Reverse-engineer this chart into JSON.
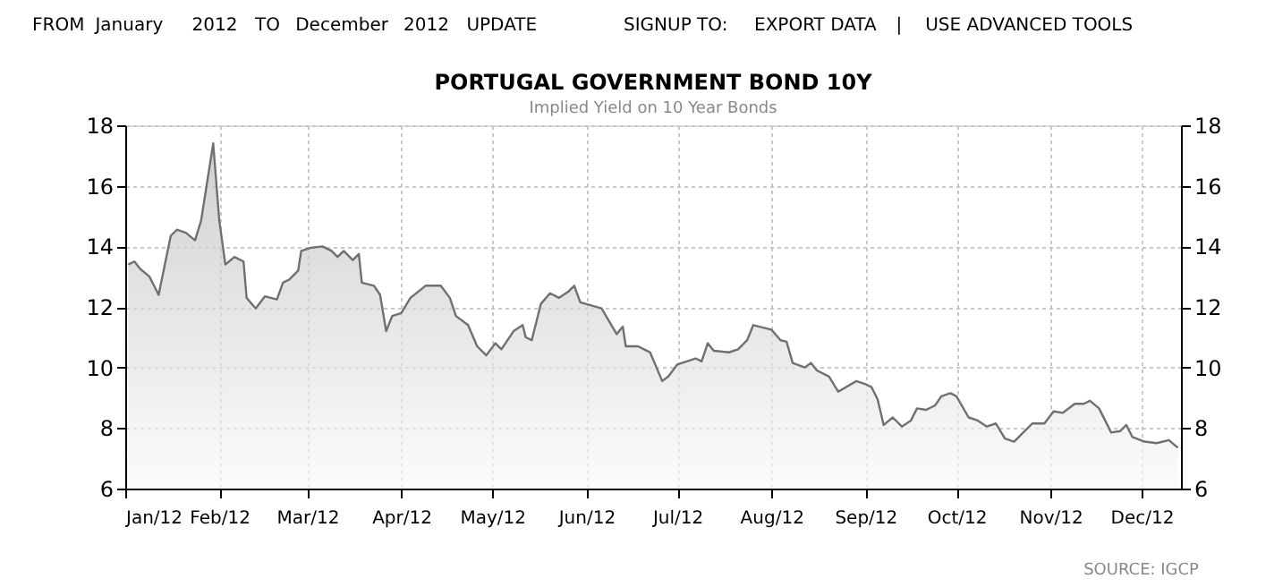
{
  "chart_data": {
    "type": "area",
    "title": "PORTUGAL GOVERNMENT BOND 10Y",
    "subtitle": "Implied Yield on 10 Year Bonds",
    "annotations": [
      "FROM",
      "January",
      "2012",
      "TO",
      "December",
      "2012",
      "UPDATE",
      "SIGNUP TO:",
      "EXPORT DATA",
      "|",
      "USE ADVANCED TOOLS",
      "SOURCE: IGCP"
    ],
    "series": [
      {
        "color": "#707070",
        "x": [
          "2012-01-02",
          "2012-01-04",
          "2012-01-06",
          "2012-01-09",
          "2012-01-12",
          "2012-01-16",
          "2012-01-18",
          "2012-01-21",
          "2012-01-24",
          "2012-01-26",
          "2012-01-30",
          "2012-02-01",
          "2012-02-03",
          "2012-02-06",
          "2012-02-09",
          "2012-02-10",
          "2012-02-13",
          "2012-02-16",
          "2012-02-20",
          "2012-02-22",
          "2012-02-24",
          "2012-02-27",
          "2012-02-28",
          "2012-03-02",
          "2012-03-06",
          "2012-03-09",
          "2012-03-11",
          "2012-03-13",
          "2012-03-16",
          "2012-03-18",
          "2012-03-19",
          "2012-03-23",
          "2012-03-25",
          "2012-03-27",
          "2012-03-29",
          "2012-04-01",
          "2012-04-04",
          "2012-04-09",
          "2012-04-14",
          "2012-04-17",
          "2012-04-19",
          "2012-04-23",
          "2012-04-26",
          "2012-04-29",
          "2012-05-02",
          "2012-05-04",
          "2012-05-08",
          "2012-05-11",
          "2012-05-12",
          "2012-05-14",
          "2012-05-17",
          "2012-05-20",
          "2012-05-23",
          "2012-05-26",
          "2012-05-28",
          "2012-05-30",
          "2012-06-06",
          "2012-06-11",
          "2012-06-13",
          "2012-06-14",
          "2012-06-18",
          "2012-06-20",
          "2012-06-22",
          "2012-06-26",
          "2012-06-28",
          "2012-07-01",
          "2012-07-07",
          "2012-07-09",
          "2012-07-11",
          "2012-07-13",
          "2012-07-18",
          "2012-07-21",
          "2012-07-24",
          "2012-07-26",
          "2012-08-01",
          "2012-08-04",
          "2012-08-06",
          "2012-08-08",
          "2012-08-12",
          "2012-08-14",
          "2012-08-16",
          "2012-08-20",
          "2012-08-23",
          "2012-08-29",
          "2012-09-01",
          "2012-09-03",
          "2012-09-05",
          "2012-09-07",
          "2012-09-10",
          "2012-09-13",
          "2012-09-16",
          "2012-09-18",
          "2012-09-21",
          "2012-09-24",
          "2012-09-26",
          "2012-09-29",
          "2012-10-01",
          "2012-10-05",
          "2012-10-08",
          "2012-10-11",
          "2012-10-14",
          "2012-10-17",
          "2012-10-20",
          "2012-10-23",
          "2012-10-26",
          "2012-10-30",
          "2012-11-02",
          "2012-11-05",
          "2012-11-09",
          "2012-11-12",
          "2012-11-14",
          "2012-11-17",
          "2012-11-21",
          "2012-11-24",
          "2012-11-26",
          "2012-11-28",
          "2012-12-02",
          "2012-12-06",
          "2012-12-10",
          "2012-12-13"
        ],
        "values": [
          13.4,
          13.5,
          13.25,
          13.0,
          12.4,
          14.35,
          14.55,
          14.45,
          14.2,
          14.85,
          17.4,
          14.85,
          13.4,
          13.65,
          13.5,
          12.3,
          11.95,
          12.35,
          12.25,
          12.8,
          12.9,
          13.2,
          13.85,
          13.95,
          14.0,
          13.85,
          13.65,
          13.85,
          13.55,
          13.75,
          12.8,
          12.7,
          12.4,
          11.2,
          11.7,
          11.8,
          12.3,
          12.7,
          12.7,
          12.3,
          11.7,
          11.4,
          10.7,
          10.4,
          10.8,
          10.6,
          11.2,
          11.4,
          11.0,
          10.9,
          12.1,
          12.45,
          12.3,
          12.5,
          12.7,
          12.15,
          11.95,
          11.1,
          11.35,
          10.7,
          10.7,
          10.6,
          10.5,
          9.55,
          9.7,
          10.1,
          10.3,
          10.2,
          10.8,
          10.55,
          10.5,
          10.6,
          10.9,
          11.4,
          11.25,
          10.9,
          10.85,
          10.15,
          10.0,
          10.15,
          9.9,
          9.7,
          9.2,
          9.55,
          9.45,
          9.35,
          8.95,
          8.1,
          8.35,
          8.05,
          8.25,
          8.65,
          8.6,
          8.75,
          9.05,
          9.15,
          9.05,
          8.35,
          8.25,
          8.05,
          8.15,
          7.65,
          7.55,
          7.85,
          8.15,
          8.15,
          8.55,
          8.5,
          8.8,
          8.8,
          8.9,
          8.65,
          7.85,
          7.9,
          8.1,
          7.7,
          7.55,
          7.5,
          7.6,
          7.35
        ]
      }
    ],
    "xlim": [
      "2012-01-01",
      "2012-12-14"
    ],
    "xticks": [
      {
        "value": "2012-01-01",
        "label": "Jan/12"
      },
      {
        "value": "2012-02-01",
        "label": "Feb/12"
      },
      {
        "value": "2012-03-01",
        "label": "Mar/12"
      },
      {
        "value": "2012-04-01",
        "label": "Apr/12"
      },
      {
        "value": "2012-05-01",
        "label": "May/12"
      },
      {
        "value": "2012-06-01",
        "label": "Jun/12"
      },
      {
        "value": "2012-07-01",
        "label": "Jul/12"
      },
      {
        "value": "2012-08-01",
        "label": "Aug/12"
      },
      {
        "value": "2012-09-01",
        "label": "Sep/12"
      },
      {
        "value": "2012-10-01",
        "label": "Oct/12"
      },
      {
        "value": "2012-11-01",
        "label": "Nov/12"
      },
      {
        "value": "2012-12-01",
        "label": "Dec/12"
      }
    ],
    "ylim": [
      6,
      18
    ],
    "yticks": [
      6,
      8,
      10,
      12,
      14,
      16,
      18
    ],
    "y2lim": [
      6,
      18
    ],
    "y2ticks": [
      6,
      8,
      10,
      12,
      14,
      16,
      18
    ],
    "grid": true
  }
}
